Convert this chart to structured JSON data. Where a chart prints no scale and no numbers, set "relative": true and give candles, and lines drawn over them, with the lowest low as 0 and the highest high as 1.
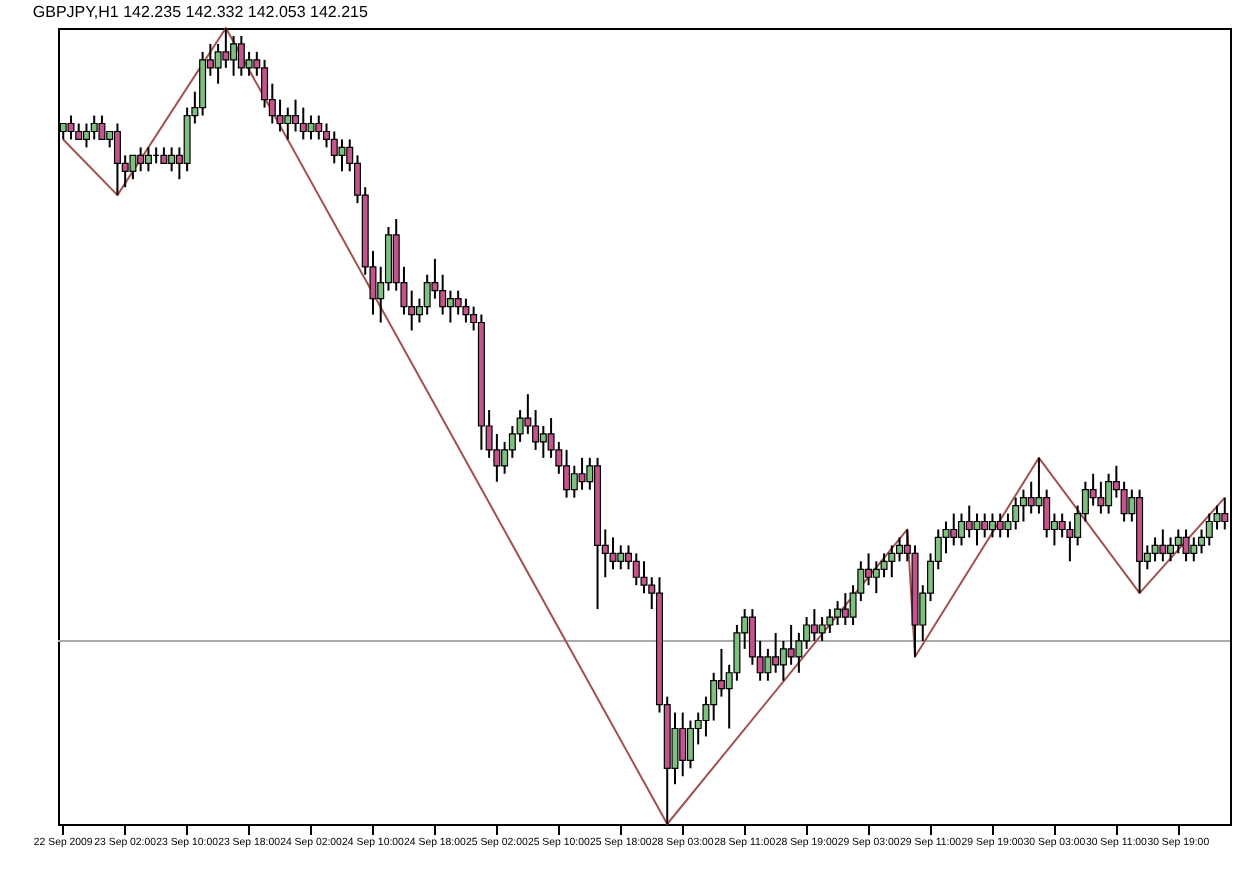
{
  "chart_data": {
    "type": "candlestick",
    "title": "GBPJPY,H1  142.235 142.332 142.053 142.215",
    "relative": true,
    "tick_labels": "x",
    "grid": false,
    "categories": [
      "22 Sep 2009",
      null,
      null,
      null,
      null,
      null,
      null,
      null,
      "23 Sep 02:00",
      null,
      null,
      null,
      null,
      null,
      null,
      null,
      "23 Sep 10:00",
      null,
      null,
      null,
      null,
      null,
      null,
      null,
      "23 Sep 18:00",
      null,
      null,
      null,
      null,
      null,
      null,
      null,
      "24 Sep 02:00",
      null,
      null,
      null,
      null,
      null,
      null,
      null,
      "24 Sep 10:00",
      null,
      null,
      null,
      null,
      null,
      null,
      null,
      "24 Sep 18:00",
      null,
      null,
      null,
      null,
      null,
      null,
      null,
      "25 Sep 02:00",
      null,
      null,
      null,
      null,
      null,
      null,
      null,
      "25 Sep 10:00",
      null,
      null,
      null,
      null,
      null,
      null,
      null,
      "25 Sep 18:00",
      null,
      null,
      null,
      null,
      null,
      null,
      null,
      "28 Sep 03:00",
      null,
      null,
      null,
      null,
      null,
      null,
      null,
      "28 Sep 11:00",
      null,
      null,
      null,
      null,
      null,
      null,
      null,
      "28 Sep 19:00",
      null,
      null,
      null,
      null,
      null,
      null,
      null,
      "29 Sep 03:00",
      null,
      null,
      null,
      null,
      null,
      null,
      null,
      "29 Sep 11:00",
      null,
      null,
      null,
      null,
      null,
      null,
      null,
      "29 Sep 19:00",
      null,
      null,
      null,
      null,
      null,
      null,
      null,
      "30 Sep 03:00",
      null,
      null,
      null,
      null,
      null,
      null,
      null,
      "30 Sep 11:00",
      null,
      null,
      null,
      null,
      null,
      null,
      null,
      "30 Sep 19:00",
      null,
      null,
      null,
      null,
      null,
      null
    ],
    "ohlc": [
      [
        0.87,
        0.88,
        0.86,
        0.88
      ],
      [
        0.88,
        0.89,
        0.86,
        0.87
      ],
      [
        0.87,
        0.88,
        0.86,
        0.86
      ],
      [
        0.86,
        0.88,
        0.85,
        0.87
      ],
      [
        0.87,
        0.89,
        0.86,
        0.88
      ],
      [
        0.88,
        0.89,
        0.86,
        0.86
      ],
      [
        0.86,
        0.87,
        0.85,
        0.87
      ],
      [
        0.87,
        0.88,
        0.79,
        0.83
      ],
      [
        0.83,
        0.84,
        0.8,
        0.82
      ],
      [
        0.82,
        0.84,
        0.81,
        0.84
      ],
      [
        0.84,
        0.85,
        0.82,
        0.83
      ],
      [
        0.83,
        0.85,
        0.82,
        0.84
      ],
      [
        0.84,
        0.85,
        0.83,
        0.84
      ],
      [
        0.84,
        0.85,
        0.83,
        0.83
      ],
      [
        0.83,
        0.85,
        0.82,
        0.84
      ],
      [
        0.84,
        0.85,
        0.81,
        0.83
      ],
      [
        0.83,
        0.9,
        0.82,
        0.89
      ],
      [
        0.89,
        0.92,
        0.88,
        0.9
      ],
      [
        0.9,
        0.97,
        0.89,
        0.96
      ],
      [
        0.96,
        0.98,
        0.94,
        0.95
      ],
      [
        0.95,
        0.98,
        0.93,
        0.97
      ],
      [
        0.97,
        1.0,
        0.95,
        0.96
      ],
      [
        0.96,
        0.99,
        0.94,
        0.98
      ],
      [
        0.98,
        0.99,
        0.94,
        0.95
      ],
      [
        0.95,
        0.97,
        0.94,
        0.96
      ],
      [
        0.96,
        0.97,
        0.94,
        0.95
      ],
      [
        0.95,
        0.96,
        0.9,
        0.91
      ],
      [
        0.91,
        0.93,
        0.88,
        0.89
      ],
      [
        0.89,
        0.91,
        0.87,
        0.88
      ],
      [
        0.88,
        0.9,
        0.86,
        0.89
      ],
      [
        0.89,
        0.91,
        0.87,
        0.88
      ],
      [
        0.88,
        0.9,
        0.86,
        0.87
      ],
      [
        0.87,
        0.89,
        0.86,
        0.88
      ],
      [
        0.88,
        0.89,
        0.86,
        0.87
      ],
      [
        0.87,
        0.88,
        0.85,
        0.86
      ],
      [
        0.86,
        0.87,
        0.83,
        0.84
      ],
      [
        0.84,
        0.86,
        0.82,
        0.85
      ],
      [
        0.85,
        0.86,
        0.82,
        0.83
      ],
      [
        0.83,
        0.84,
        0.78,
        0.79
      ],
      [
        0.79,
        0.8,
        0.69,
        0.7
      ],
      [
        0.7,
        0.72,
        0.64,
        0.66
      ],
      [
        0.66,
        0.7,
        0.63,
        0.68
      ],
      [
        0.68,
        0.75,
        0.67,
        0.74
      ],
      [
        0.74,
        0.76,
        0.67,
        0.68
      ],
      [
        0.68,
        0.7,
        0.64,
        0.65
      ],
      [
        0.65,
        0.67,
        0.62,
        0.64
      ],
      [
        0.64,
        0.66,
        0.63,
        0.65
      ],
      [
        0.65,
        0.69,
        0.64,
        0.68
      ],
      [
        0.68,
        0.71,
        0.66,
        0.67
      ],
      [
        0.67,
        0.69,
        0.64,
        0.65
      ],
      [
        0.65,
        0.67,
        0.63,
        0.66
      ],
      [
        0.66,
        0.67,
        0.64,
        0.65
      ],
      [
        0.65,
        0.66,
        0.63,
        0.64
      ],
      [
        0.64,
        0.65,
        0.62,
        0.63
      ],
      [
        0.63,
        0.64,
        0.47,
        0.5
      ],
      [
        0.5,
        0.52,
        0.46,
        0.47
      ],
      [
        0.47,
        0.49,
        0.43,
        0.45
      ],
      [
        0.45,
        0.48,
        0.44,
        0.47
      ],
      [
        0.47,
        0.5,
        0.46,
        0.49
      ],
      [
        0.49,
        0.52,
        0.48,
        0.51
      ],
      [
        0.51,
        0.54,
        0.49,
        0.5
      ],
      [
        0.5,
        0.52,
        0.47,
        0.48
      ],
      [
        0.48,
        0.5,
        0.46,
        0.49
      ],
      [
        0.49,
        0.51,
        0.46,
        0.47
      ],
      [
        0.47,
        0.48,
        0.44,
        0.45
      ],
      [
        0.45,
        0.47,
        0.41,
        0.42
      ],
      [
        0.42,
        0.45,
        0.41,
        0.44
      ],
      [
        0.44,
        0.46,
        0.42,
        0.43
      ],
      [
        0.43,
        0.46,
        0.42,
        0.45
      ],
      [
        0.45,
        0.46,
        0.27,
        0.35
      ],
      [
        0.35,
        0.37,
        0.31,
        0.34
      ],
      [
        0.34,
        0.36,
        0.32,
        0.33
      ],
      [
        0.33,
        0.35,
        0.32,
        0.34
      ],
      [
        0.34,
        0.35,
        0.32,
        0.33
      ],
      [
        0.33,
        0.34,
        0.3,
        0.31
      ],
      [
        0.31,
        0.33,
        0.29,
        0.3
      ],
      [
        0.3,
        0.31,
        0.27,
        0.29
      ],
      [
        0.29,
        0.31,
        0.14,
        0.15
      ],
      [
        0.15,
        0.16,
        0,
        0.07
      ],
      [
        0.07,
        0.14,
        0.05,
        0.12
      ],
      [
        0.12,
        0.14,
        0.06,
        0.08
      ],
      [
        0.08,
        0.13,
        0.07,
        0.12
      ],
      [
        0.12,
        0.14,
        0.1,
        0.13
      ],
      [
        0.13,
        0.16,
        0.11,
        0.15
      ],
      [
        0.15,
        0.19,
        0.13,
        0.18
      ],
      [
        0.18,
        0.22,
        0.16,
        0.17
      ],
      [
        0.17,
        0.2,
        0.12,
        0.19
      ],
      [
        0.19,
        0.25,
        0.18,
        0.24
      ],
      [
        0.24,
        0.27,
        0.22,
        0.26
      ],
      [
        0.26,
        0.27,
        0.2,
        0.21
      ],
      [
        0.21,
        0.23,
        0.18,
        0.19
      ],
      [
        0.19,
        0.22,
        0.18,
        0.21
      ],
      [
        0.21,
        0.24,
        0.19,
        0.2
      ],
      [
        0.2,
        0.23,
        0.18,
        0.22
      ],
      [
        0.22,
        0.25,
        0.2,
        0.21
      ],
      [
        0.21,
        0.24,
        0.19,
        0.23
      ],
      [
        0.23,
        0.26,
        0.22,
        0.25
      ],
      [
        0.25,
        0.27,
        0.23,
        0.24
      ],
      [
        0.24,
        0.26,
        0.23,
        0.25
      ],
      [
        0.25,
        0.27,
        0.24,
        0.26
      ],
      [
        0.26,
        0.28,
        0.25,
        0.27
      ],
      [
        0.27,
        0.29,
        0.25,
        0.26
      ],
      [
        0.26,
        0.3,
        0.25,
        0.29
      ],
      [
        0.29,
        0.33,
        0.28,
        0.32
      ],
      [
        0.32,
        0.34,
        0.3,
        0.31
      ],
      [
        0.31,
        0.33,
        0.29,
        0.32
      ],
      [
        0.32,
        0.34,
        0.31,
        0.33
      ],
      [
        0.33,
        0.35,
        0.31,
        0.34
      ],
      [
        0.34,
        0.36,
        0.33,
        0.35
      ],
      [
        0.35,
        0.37,
        0.33,
        0.34
      ],
      [
        0.34,
        0.35,
        0.21,
        0.25
      ],
      [
        0.25,
        0.3,
        0.23,
        0.29
      ],
      [
        0.29,
        0.34,
        0.28,
        0.33
      ],
      [
        0.33,
        0.37,
        0.32,
        0.36
      ],
      [
        0.36,
        0.38,
        0.34,
        0.37
      ],
      [
        0.37,
        0.39,
        0.35,
        0.36
      ],
      [
        0.36,
        0.39,
        0.35,
        0.38
      ],
      [
        0.38,
        0.4,
        0.36,
        0.37
      ],
      [
        0.37,
        0.39,
        0.35,
        0.38
      ],
      [
        0.38,
        0.39,
        0.36,
        0.37
      ],
      [
        0.37,
        0.39,
        0.36,
        0.38
      ],
      [
        0.38,
        0.39,
        0.36,
        0.37
      ],
      [
        0.37,
        0.39,
        0.36,
        0.38
      ],
      [
        0.38,
        0.41,
        0.37,
        0.4
      ],
      [
        0.4,
        0.42,
        0.38,
        0.41
      ],
      [
        0.41,
        0.43,
        0.39,
        0.4
      ],
      [
        0.4,
        0.46,
        0.39,
        0.41
      ],
      [
        0.41,
        0.42,
        0.36,
        0.37
      ],
      [
        0.37,
        0.39,
        0.35,
        0.38
      ],
      [
        0.38,
        0.39,
        0.36,
        0.37
      ],
      [
        0.37,
        0.38,
        0.33,
        0.36
      ],
      [
        0.36,
        0.4,
        0.35,
        0.39
      ],
      [
        0.39,
        0.43,
        0.38,
        0.42
      ],
      [
        0.42,
        0.44,
        0.4,
        0.41
      ],
      [
        0.41,
        0.43,
        0.39,
        0.4
      ],
      [
        0.4,
        0.44,
        0.39,
        0.43
      ],
      [
        0.43,
        0.45,
        0.41,
        0.42
      ],
      [
        0.42,
        0.43,
        0.38,
        0.39
      ],
      [
        0.39,
        0.42,
        0.38,
        0.41
      ],
      [
        0.41,
        0.42,
        0.29,
        0.33
      ],
      [
        0.33,
        0.35,
        0.32,
        0.34
      ],
      [
        0.34,
        0.36,
        0.33,
        0.35
      ],
      [
        0.35,
        0.37,
        0.33,
        0.34
      ],
      [
        0.34,
        0.36,
        0.33,
        0.35
      ],
      [
        0.35,
        0.37,
        0.34,
        0.36
      ],
      [
        0.36,
        0.37,
        0.33,
        0.34
      ],
      [
        0.34,
        0.36,
        0.33,
        0.35
      ],
      [
        0.35,
        0.37,
        0.34,
        0.36
      ],
      [
        0.36,
        0.39,
        0.35,
        0.38
      ],
      [
        0.38,
        0.4,
        0.37,
        0.39
      ],
      [
        0.39,
        0.41,
        0.37,
        0.38
      ]
    ],
    "series": [
      {
        "type": "line",
        "color": "#a0524f",
        "values": [
          0.86,
          null,
          null,
          null,
          null,
          null,
          null,
          0.79,
          null,
          null,
          null,
          null,
          null,
          null,
          null,
          null,
          null,
          null,
          null,
          null,
          null,
          1.0,
          null,
          null,
          null,
          null,
          null,
          null,
          null,
          null,
          null,
          null,
          null,
          null,
          null,
          null,
          null,
          null,
          null,
          null,
          null,
          null,
          null,
          null,
          null,
          null,
          null,
          null,
          null,
          null,
          null,
          null,
          null,
          null,
          null,
          null,
          null,
          null,
          null,
          null,
          null,
          null,
          null,
          null,
          null,
          null,
          null,
          null,
          null,
          null,
          null,
          null,
          null,
          null,
          null,
          null,
          null,
          null,
          0,
          null,
          null,
          null,
          null,
          null,
          null,
          null,
          null,
          null,
          null,
          null,
          null,
          null,
          null,
          null,
          null,
          null,
          null,
          null,
          null,
          null,
          null,
          null,
          null,
          null,
          null,
          null,
          null,
          null,
          null,
          0.37,
          0.21,
          null,
          null,
          null,
          null,
          null,
          null,
          null,
          null,
          null,
          null,
          null,
          null,
          null,
          null,
          null,
          0.46,
          null,
          null,
          null,
          null,
          null,
          null,
          null,
          null,
          null,
          null,
          null,
          null,
          0.29,
          null,
          null,
          null,
          null,
          null,
          null,
          null,
          null,
          null,
          null,
          0.41
        ]
      }
    ],
    "ref_lines": [
      {
        "axis": "y",
        "value": 0.23,
        "color": "#aaaaaa"
      }
    ]
  }
}
